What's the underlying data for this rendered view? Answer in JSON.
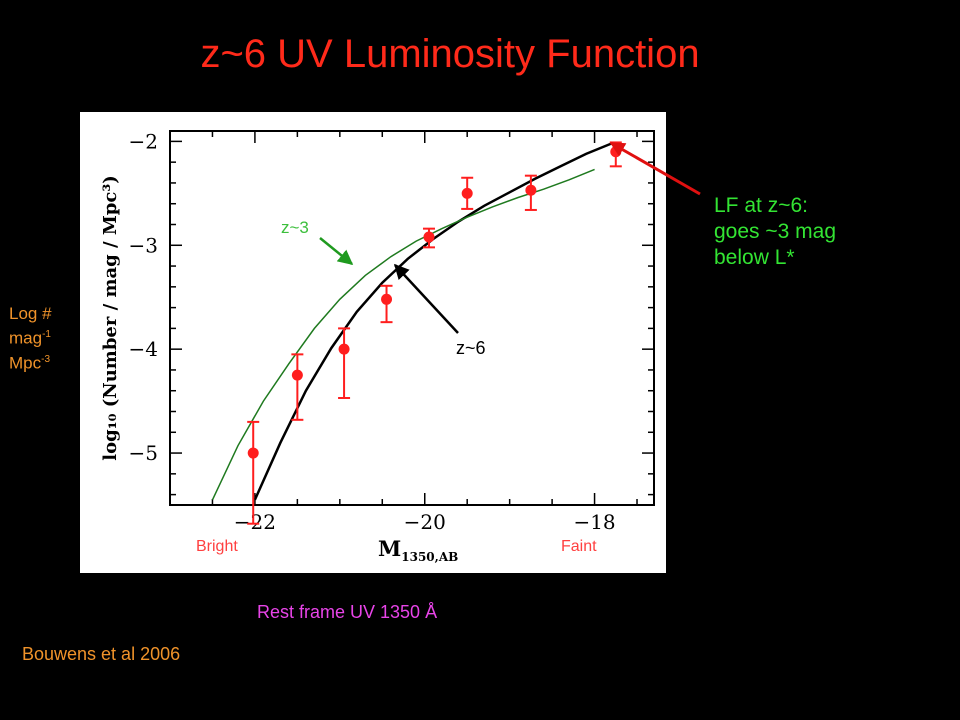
{
  "slide": {
    "title": "z~6 UV Luminosity Function",
    "ylabel_side": {
      "line1": "Log #",
      "line2_base": "mag",
      "line2_sup": "-1",
      "line3_base": "Mpc",
      "line3_sup": "-3"
    },
    "xcaption": "Rest frame UV 1350 Å",
    "citation": "Bouwens et al 2006",
    "note_lines": [
      "LF at z~6:",
      "goes ~3 mag",
      "below L*"
    ]
  },
  "chart_data": {
    "type": "scatter",
    "title": "",
    "xlabel": "M",
    "xlabel_sub": "1350,AB",
    "ylabel": "log₁₀ (Number / mag / Mpc³)",
    "xlim": [
      -23.0,
      -17.3
    ],
    "ylim": [
      -5.5,
      -1.9
    ],
    "x_ticks": [
      -22,
      -20,
      -18
    ],
    "y_ticks": [
      -2,
      -3,
      -4,
      -5
    ],
    "x_tick_labels": [
      "−22",
      "−20",
      "−18"
    ],
    "y_tick_labels": [
      "−2",
      "−3",
      "−4",
      "−5"
    ],
    "x_end_labels": {
      "left": "Bright",
      "right": "Faint"
    },
    "series": [
      {
        "name": "z~6",
        "kind": "points",
        "color": "#ff1e1e",
        "x": [
          -22.02,
          -21.5,
          -20.95,
          -20.45,
          -19.95,
          -19.5,
          -18.75,
          -17.75
        ],
        "y": [
          -5.0,
          -4.25,
          -4.0,
          -3.52,
          -2.92,
          -2.5,
          -2.47,
          -2.1
        ],
        "y_err_low": [
          0.68,
          0.43,
          0.47,
          0.22,
          0.1,
          0.15,
          0.19,
          0.14
        ],
        "y_err_high": [
          0.3,
          0.2,
          0.2,
          0.13,
          0.08,
          0.15,
          0.14,
          0.09
        ]
      },
      {
        "name": "z~6",
        "kind": "curve",
        "color": "#000000",
        "x": [
          -22.0,
          -21.7,
          -21.4,
          -21.1,
          -20.8,
          -20.5,
          -20.2,
          -19.9,
          -19.6,
          -19.3,
          -19.0,
          -18.7,
          -18.4,
          -18.1,
          -17.8
        ],
        "y": [
          -5.45,
          -4.9,
          -4.4,
          -3.99,
          -3.64,
          -3.36,
          -3.13,
          -2.94,
          -2.77,
          -2.62,
          -2.49,
          -2.36,
          -2.24,
          -2.12,
          -2.02
        ]
      },
      {
        "name": "z~3",
        "kind": "curve",
        "color": "#1f7a1f",
        "x": [
          -22.5,
          -22.2,
          -21.9,
          -21.6,
          -21.3,
          -21.0,
          -20.7,
          -20.4,
          -20.1,
          -19.8,
          -19.5,
          -19.2,
          -18.9,
          -18.6,
          -18.3,
          -18.0
        ],
        "y": [
          -5.45,
          -4.93,
          -4.5,
          -4.14,
          -3.8,
          -3.52,
          -3.29,
          -3.11,
          -2.96,
          -2.84,
          -2.73,
          -2.63,
          -2.54,
          -2.46,
          -2.37,
          -2.27
        ]
      }
    ],
    "annotations": [
      {
        "text": "z~3",
        "color": "#3cbf3c"
      },
      {
        "text": "z~6",
        "color": "#000000"
      }
    ],
    "grid": false,
    "legend": "none"
  }
}
